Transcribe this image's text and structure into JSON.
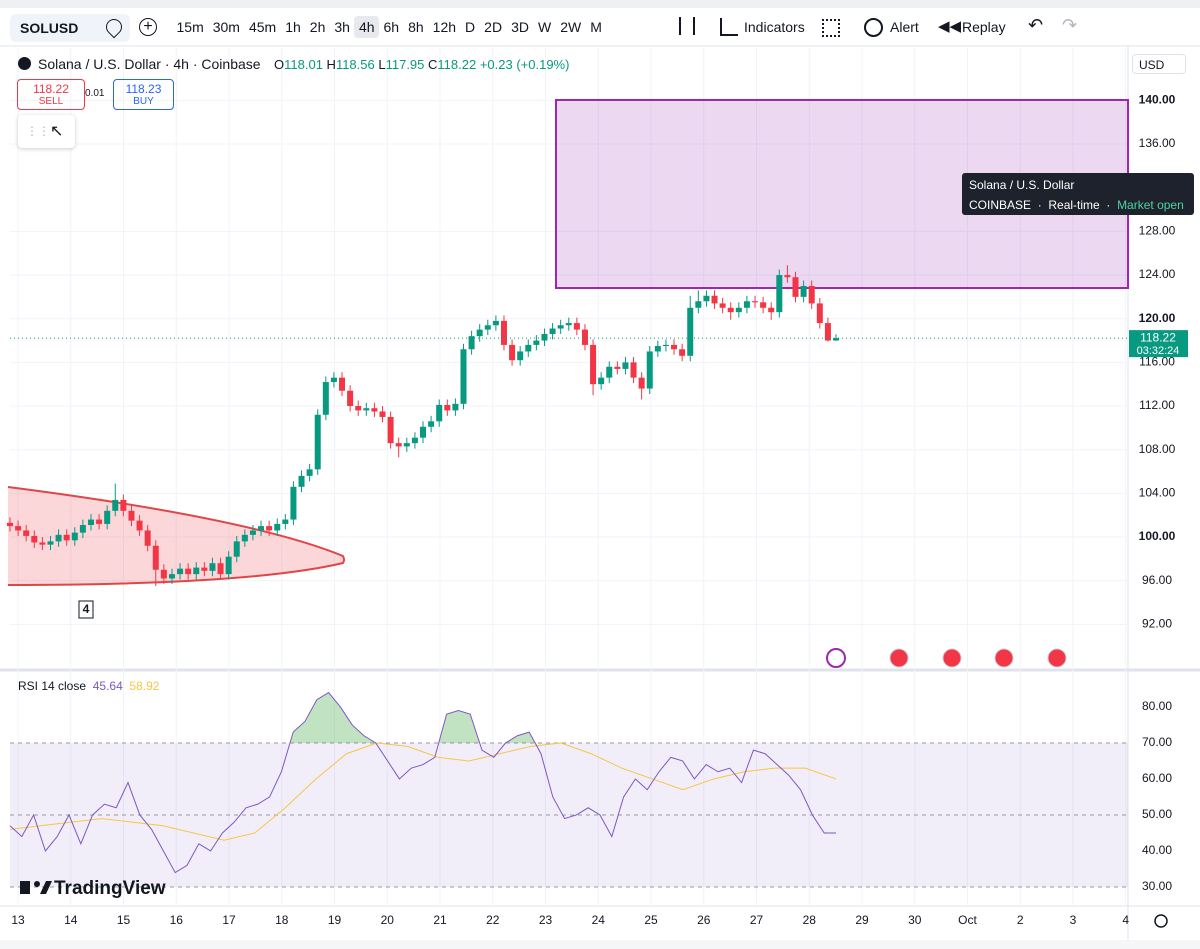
{
  "toolbar": {
    "symbol": "SOLUSD",
    "intervals": [
      "15m",
      "30m",
      "45m",
      "1h",
      "2h",
      "3h",
      "4h",
      "6h",
      "8h",
      "12h",
      "D",
      "2D",
      "3D",
      "W",
      "2W",
      "M"
    ],
    "selected": "4h",
    "indicators": "Indicators",
    "alert": "Alert",
    "replay": "Replay"
  },
  "legend": {
    "title": "Solana / U.S. Dollar · 4h · Coinbase",
    "o_label": "O",
    "open": 118.01,
    "h_label": "H",
    "high": 118.56,
    "l_label": "L",
    "low": 117.95,
    "c_label": "C",
    "close": 118.22,
    "change": "+0.23 (+0.19%)"
  },
  "trade": {
    "sell_price": 118.22,
    "sell": "SELL",
    "spread": 0.01,
    "buy_price": 118.23,
    "buy": "BUY"
  },
  "currency": "USD",
  "tooltip": {
    "title": "Solana / U.S. Dollar",
    "exchange": "COINBASE",
    "sep1": "·",
    "mode": "Real-time",
    "sep2": "·",
    "status": "Market open"
  },
  "pattern_label": "4",
  "logo": "TradingView",
  "chart_data": {
    "type": "candlestick",
    "up_color": "#089981",
    "down_color": "#f23645",
    "candles": [
      [
        101.3,
        101.8,
        100.5,
        101.0
      ],
      [
        101.0,
        101.5,
        100.1,
        100.6
      ],
      [
        100.6,
        101.1,
        99.6,
        100.1
      ],
      [
        100.1,
        100.6,
        99.0,
        99.5
      ],
      [
        99.5,
        100.0,
        98.8,
        99.3
      ],
      [
        99.3,
        100.1,
        98.8,
        99.6
      ],
      [
        99.6,
        100.7,
        99.1,
        100.2
      ],
      [
        100.2,
        100.7,
        99.2,
        99.7
      ],
      [
        99.7,
        100.9,
        99.2,
        100.4
      ],
      [
        100.4,
        101.6,
        99.9,
        101.1
      ],
      [
        101.1,
        102.1,
        100.6,
        101.6
      ],
      [
        101.6,
        102.1,
        100.7,
        101.2
      ],
      [
        101.2,
        102.9,
        100.7,
        102.4
      ],
      [
        102.4,
        104.9,
        101.9,
        103.4
      ],
      [
        103.4,
        103.9,
        101.9,
        102.4
      ],
      [
        102.4,
        102.9,
        101.0,
        101.5
      ],
      [
        101.5,
        102.0,
        100.1,
        100.6
      ],
      [
        100.6,
        101.1,
        98.7,
        99.2
      ],
      [
        99.2,
        99.7,
        95.5,
        97.0
      ],
      [
        97.0,
        97.5,
        95.7,
        96.2
      ],
      [
        96.2,
        97.1,
        95.7,
        96.6
      ],
      [
        96.6,
        97.6,
        96.1,
        97.1
      ],
      [
        97.1,
        97.6,
        96.1,
        96.6
      ],
      [
        96.6,
        97.7,
        96.1,
        97.2
      ],
      [
        97.2,
        97.7,
        96.4,
        96.9
      ],
      [
        96.9,
        98.1,
        96.4,
        97.6
      ],
      [
        97.6,
        98.1,
        96.1,
        96.6
      ],
      [
        96.6,
        98.7,
        96.1,
        98.2
      ],
      [
        98.2,
        100.1,
        97.7,
        99.6
      ],
      [
        99.6,
        100.7,
        99.1,
        100.2
      ],
      [
        100.2,
        101.1,
        99.7,
        100.6
      ],
      [
        100.6,
        101.5,
        100.1,
        101.0
      ],
      [
        101.0,
        101.5,
        100.1,
        100.6
      ],
      [
        100.6,
        101.7,
        100.1,
        101.2
      ],
      [
        101.2,
        102.1,
        100.7,
        101.6
      ],
      [
        101.6,
        105.1,
        101.1,
        104.6
      ],
      [
        104.6,
        106.1,
        104.1,
        105.6
      ],
      [
        105.6,
        106.7,
        105.1,
        106.2
      ],
      [
        106.2,
        111.7,
        105.7,
        111.2
      ],
      [
        111.2,
        114.7,
        110.7,
        114.2
      ],
      [
        114.2,
        115.1,
        113.7,
        114.6
      ],
      [
        114.6,
        115.1,
        112.9,
        113.4
      ],
      [
        113.4,
        113.9,
        111.5,
        112.0
      ],
      [
        112.0,
        112.5,
        111.1,
        111.6
      ],
      [
        111.6,
        112.3,
        111.1,
        111.8
      ],
      [
        111.8,
        112.3,
        111.0,
        111.5
      ],
      [
        111.5,
        112.0,
        110.5,
        111.0
      ],
      [
        111.0,
        111.5,
        108.1,
        108.6
      ],
      [
        108.6,
        109.1,
        107.3,
        108.3
      ],
      [
        108.3,
        109.1,
        107.8,
        108.6
      ],
      [
        108.6,
        109.6,
        108.1,
        109.1
      ],
      [
        109.1,
        110.6,
        108.6,
        110.1
      ],
      [
        110.1,
        111.1,
        109.6,
        110.6
      ],
      [
        110.6,
        112.6,
        110.1,
        112.1
      ],
      [
        112.1,
        112.6,
        111.1,
        111.6
      ],
      [
        111.6,
        112.7,
        111.1,
        112.2
      ],
      [
        112.2,
        117.7,
        111.7,
        117.2
      ],
      [
        117.2,
        118.9,
        116.7,
        118.4
      ],
      [
        118.4,
        119.5,
        117.9,
        119.0
      ],
      [
        119.0,
        119.9,
        118.5,
        119.4
      ],
      [
        119.4,
        120.3,
        118.9,
        119.8
      ],
      [
        119.8,
        120.3,
        117.1,
        117.6
      ],
      [
        117.6,
        118.1,
        115.7,
        116.2
      ],
      [
        116.2,
        117.5,
        115.7,
        117.0
      ],
      [
        117.0,
        118.1,
        116.5,
        117.6
      ],
      [
        117.6,
        118.5,
        117.1,
        118.0
      ],
      [
        118.0,
        119.1,
        117.5,
        118.6
      ],
      [
        118.6,
        119.6,
        118.1,
        119.1
      ],
      [
        119.1,
        119.9,
        118.6,
        119.4
      ],
      [
        119.4,
        120.1,
        118.9,
        119.6
      ],
      [
        119.6,
        120.1,
        118.5,
        119.0
      ],
      [
        119.0,
        119.5,
        117.1,
        117.6
      ],
      [
        117.6,
        118.1,
        113.0,
        114.0
      ],
      [
        114.0,
        115.1,
        113.5,
        114.6
      ],
      [
        114.6,
        116.1,
        114.1,
        115.6
      ],
      [
        115.6,
        116.1,
        114.9,
        115.4
      ],
      [
        115.4,
        116.5,
        114.9,
        116.0
      ],
      [
        116.0,
        116.5,
        114.1,
        114.6
      ],
      [
        114.6,
        115.1,
        112.6,
        113.6
      ],
      [
        113.6,
        117.5,
        113.1,
        117.0
      ],
      [
        117.0,
        118.0,
        116.5,
        117.5
      ],
      [
        117.5,
        118.1,
        117.0,
        117.6
      ],
      [
        117.6,
        118.1,
        116.7,
        117.2
      ],
      [
        117.2,
        117.7,
        116.1,
        116.6
      ],
      [
        116.6,
        122.1,
        116.1,
        121.0
      ],
      [
        121.0,
        122.6,
        120.5,
        121.6
      ],
      [
        121.6,
        122.6,
        121.1,
        122.1
      ],
      [
        122.1,
        122.6,
        120.9,
        121.4
      ],
      [
        121.4,
        121.9,
        120.5,
        121.0
      ],
      [
        121.0,
        121.5,
        119.9,
        120.6
      ],
      [
        120.6,
        121.5,
        120.1,
        121.0
      ],
      [
        121.0,
        122.1,
        120.5,
        121.6
      ],
      [
        121.6,
        122.1,
        121.0,
        121.5
      ],
      [
        121.5,
        122.0,
        120.5,
        121.0
      ],
      [
        121.0,
        121.5,
        119.9,
        120.6
      ],
      [
        120.6,
        124.5,
        120.1,
        124.0
      ],
      [
        124.0,
        124.9,
        123.3,
        123.8
      ],
      [
        123.8,
        124.3,
        121.5,
        122.0
      ],
      [
        122.0,
        123.5,
        121.5,
        123.0
      ],
      [
        123.0,
        123.5,
        120.9,
        121.4
      ],
      [
        121.4,
        121.9,
        119.1,
        119.6
      ],
      [
        119.6,
        120.1,
        117.9,
        118.0
      ],
      [
        118.01,
        118.56,
        117.95,
        118.22
      ]
    ],
    "ylim": [
      88,
      144.8
    ],
    "yticks": [
      {
        "value": 140,
        "label": "140.00"
      },
      {
        "value": 136,
        "label": "136.00"
      },
      {
        "value": 128,
        "label": "128.00"
      },
      {
        "value": 124,
        "label": "124.00"
      },
      {
        "value": 120,
        "label": "120.00"
      },
      {
        "value": 116,
        "label": "116.00"
      },
      {
        "value": 112,
        "label": "112.00"
      },
      {
        "value": 108,
        "label": "108.00"
      },
      {
        "value": 104,
        "label": "104.00"
      },
      {
        "value": 100,
        "label": "100.00"
      },
      {
        "value": 96,
        "label": "96.00"
      },
      {
        "value": 92,
        "label": "92.00"
      }
    ],
    "last_price": 118.22,
    "countdown": "03:32:24",
    "categories": [
      "13",
      "14",
      "15",
      "16",
      "17",
      "18",
      "19",
      "20",
      "21",
      "22",
      "23",
      "24",
      "25",
      "26",
      "27",
      "28",
      "29",
      "30",
      "Oct",
      "2",
      "3",
      "4"
    ]
  },
  "rsi": {
    "type": "line",
    "label": "RSI 14 close",
    "value": 45.64,
    "ma_value": 58.92,
    "color": "#7e57c2",
    "ma_color": "#f7c548",
    "values": [
      47,
      44,
      50,
      40,
      44,
      50,
      42,
      50,
      53,
      52,
      59,
      50,
      46,
      40,
      34,
      36,
      42,
      40,
      45,
      48,
      52,
      53,
      55,
      62,
      73,
      76,
      82,
      84,
      80,
      75,
      72,
      70,
      65,
      60,
      63,
      64,
      66,
      78,
      79,
      78,
      68,
      66,
      70,
      72,
      73,
      67,
      55,
      49,
      50,
      52,
      50,
      44,
      55,
      60,
      57,
      62,
      66,
      65,
      60,
      64,
      62,
      63,
      59,
      68,
      67,
      64,
      61,
      57,
      50,
      45,
      45
    ],
    "ma_values": [
      46,
      47,
      48,
      49,
      48,
      47,
      45,
      43,
      45,
      52,
      60,
      67,
      70,
      69,
      66,
      65,
      67,
      69,
      70,
      67,
      63,
      60,
      57,
      60,
      62,
      63,
      63,
      60
    ],
    "ylim": [
      25,
      89.7
    ],
    "yticks": [
      {
        "value": 80,
        "label": "80.00"
      },
      {
        "value": 70,
        "label": "70.00"
      },
      {
        "value": 60,
        "label": "60.00"
      },
      {
        "value": 50,
        "label": "50.00"
      },
      {
        "value": 40,
        "label": "40.00"
      },
      {
        "value": 30,
        "label": "30.00"
      }
    ],
    "bands": [
      70,
      50,
      30
    ]
  }
}
